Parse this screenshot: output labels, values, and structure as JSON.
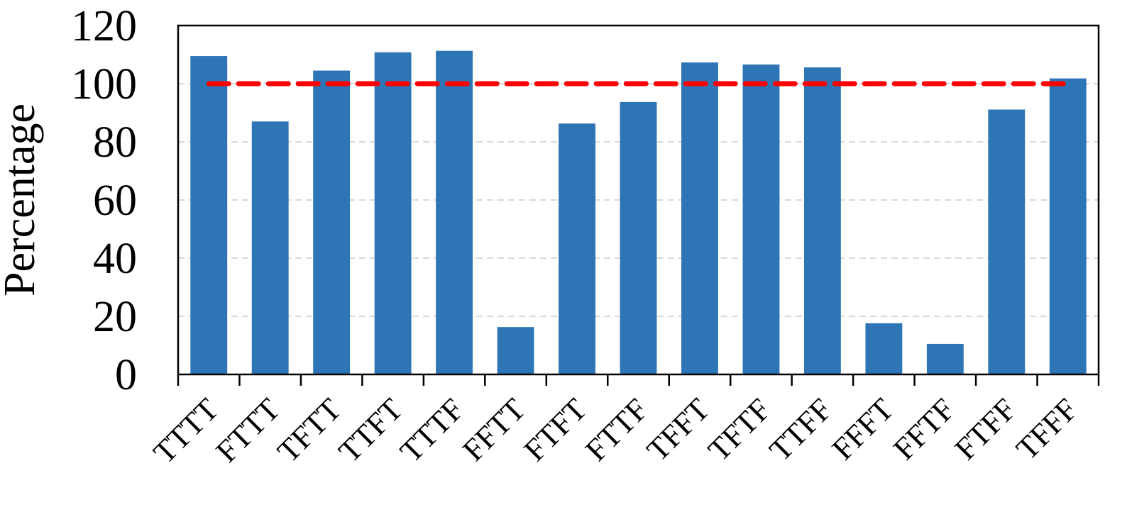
{
  "chart_data": {
    "type": "bar",
    "title": "",
    "xlabel": "",
    "ylabel": "Percentage",
    "categories": [
      "TTTT",
      "FTTT",
      "TFTT",
      "TTFT",
      "TTTF",
      "FFTT",
      "FTFT",
      "FTTF",
      "TFFT",
      "TFTF",
      "TTFF",
      "FFFT",
      "FFTF",
      "FTFF",
      "TFFF"
    ],
    "values": [
      109.5,
      87,
      104.5,
      110.8,
      111.3,
      16.3,
      86.3,
      93.7,
      107.3,
      106.6,
      105.6,
      17.6,
      10.5,
      91.1,
      101.8
    ],
    "ylim": [
      0,
      120
    ],
    "yticks": [
      0,
      20,
      40,
      60,
      80,
      100,
      120
    ],
    "grid": true,
    "reference_line": {
      "y": 100,
      "style": "dashed"
    },
    "colors": {
      "bar": "#2E75B6",
      "reference_line": "#FF0000",
      "grid": "#D9D9D9",
      "axis": "#000000"
    }
  }
}
